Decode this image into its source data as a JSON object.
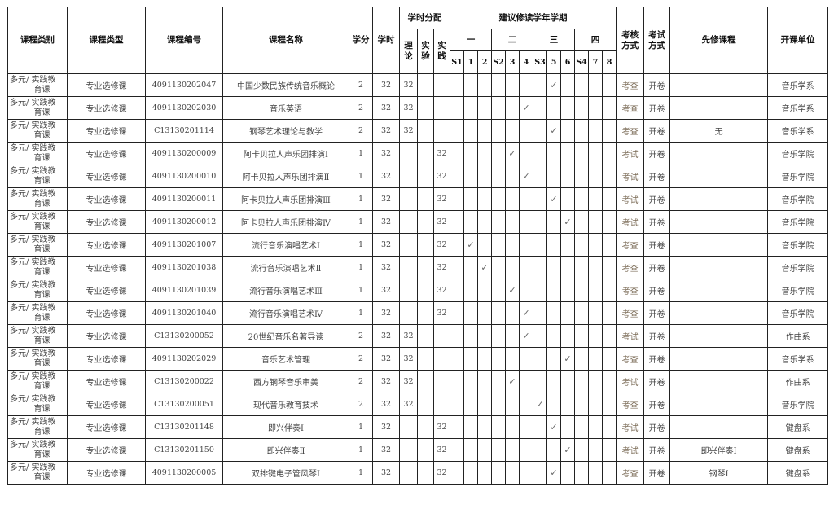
{
  "headers": {
    "category": "课程类别",
    "type": "课程类型",
    "code": "课程编号",
    "name": "课程名称",
    "credits": "学分",
    "hours": "学时",
    "hours_split": "学时分配",
    "theory": "理论",
    "lab": "实验",
    "practice": "实践",
    "semesters_title": "建议修读学年学期",
    "years": [
      "一",
      "二",
      "三",
      "四"
    ],
    "semesters": [
      "S1",
      "1",
      "2",
      "S2",
      "3",
      "4",
      "S3",
      "5",
      "6",
      "S4",
      "7",
      "8"
    ],
    "assessment": "考核方式",
    "exam": "考试方式",
    "prereq": "先修课程",
    "unit": "开课单位"
  },
  "check_mark": "✓",
  "rows": [
    {
      "category": "多元/ 实践教育课",
      "type": "专业选修课",
      "code": "4091130202047",
      "name": "中国少数民族传统音乐概论",
      "credits": "2",
      "hours": "32",
      "theory": "32",
      "lab": "",
      "practice": "",
      "semester": "5",
      "assessment": "考查",
      "exam": "开卷",
      "prereq": "",
      "unit": "音乐学系"
    },
    {
      "category": "多元/ 实践教育课",
      "type": "专业选修课",
      "code": "4091130202030",
      "name": "音乐英语",
      "credits": "2",
      "hours": "32",
      "theory": "32",
      "lab": "",
      "practice": "",
      "semester": "4",
      "assessment": "考查",
      "exam": "开卷",
      "prereq": "",
      "unit": "音乐学系"
    },
    {
      "category": "多元/ 实践教育课",
      "type": "专业选修课",
      "code": "C13130201114",
      "name": "钢琴艺术理论与教学",
      "credits": "2",
      "hours": "32",
      "theory": "32",
      "lab": "",
      "practice": "",
      "semester": "5",
      "assessment": "考查",
      "exam": "开卷",
      "prereq": "无",
      "unit": "音乐学系"
    },
    {
      "category": "多元/ 实践教育课",
      "type": "专业选修课",
      "code": "4091130200009",
      "name": "阿卡贝拉人声乐团排演Ⅰ",
      "credits": "1",
      "hours": "32",
      "theory": "",
      "lab": "",
      "practice": "32",
      "semester": "3",
      "assessment": "考试",
      "exam": "开卷",
      "prereq": "",
      "unit": "音乐学院"
    },
    {
      "category": "多元/ 实践教育课",
      "type": "专业选修课",
      "code": "4091130200010",
      "name": "阿卡贝拉人声乐团排演Ⅱ",
      "credits": "1",
      "hours": "32",
      "theory": "",
      "lab": "",
      "practice": "32",
      "semester": "4",
      "assessment": "考试",
      "exam": "开卷",
      "prereq": "",
      "unit": "音乐学院"
    },
    {
      "category": "多元/ 实践教育课",
      "type": "专业选修课",
      "code": "4091130200011",
      "name": "阿卡贝拉人声乐团排演Ⅲ",
      "credits": "1",
      "hours": "32",
      "theory": "",
      "lab": "",
      "practice": "32",
      "semester": "5",
      "assessment": "考试",
      "exam": "开卷",
      "prereq": "",
      "unit": "音乐学院"
    },
    {
      "category": "多元/ 实践教育课",
      "type": "专业选修课",
      "code": "4091130200012",
      "name": "阿卡贝拉人声乐团排演Ⅳ",
      "credits": "1",
      "hours": "32",
      "theory": "",
      "lab": "",
      "practice": "32",
      "semester": "6",
      "assessment": "考试",
      "exam": "开卷",
      "prereq": "",
      "unit": "音乐学院"
    },
    {
      "category": "多元/ 实践教育课",
      "type": "专业选修课",
      "code": "4091130201007",
      "name": "流行音乐演唱艺术Ⅰ",
      "credits": "1",
      "hours": "32",
      "theory": "",
      "lab": "",
      "practice": "32",
      "semester": "1",
      "assessment": "考查",
      "exam": "开卷",
      "prereq": "",
      "unit": "音乐学院"
    },
    {
      "category": "多元/ 实践教育课",
      "type": "专业选修课",
      "code": "4091130201038",
      "name": "流行音乐演唱艺术Ⅱ",
      "credits": "1",
      "hours": "32",
      "theory": "",
      "lab": "",
      "practice": "32",
      "semester": "2",
      "assessment": "考查",
      "exam": "开卷",
      "prereq": "",
      "unit": "音乐学院"
    },
    {
      "category": "多元/ 实践教育课",
      "type": "专业选修课",
      "code": "4091130201039",
      "name": "流行音乐演唱艺术Ⅲ",
      "credits": "1",
      "hours": "32",
      "theory": "",
      "lab": "",
      "practice": "32",
      "semester": "3",
      "assessment": "考查",
      "exam": "开卷",
      "prereq": "",
      "unit": "音乐学院"
    },
    {
      "category": "多元/ 实践教育课",
      "type": "专业选修课",
      "code": "4091130201040",
      "name": "流行音乐演唱艺术Ⅳ",
      "credits": "1",
      "hours": "32",
      "theory": "",
      "lab": "",
      "practice": "32",
      "semester": "4",
      "assessment": "考查",
      "exam": "开卷",
      "prereq": "",
      "unit": "音乐学院"
    },
    {
      "category": "多元/ 实践教育课",
      "type": "专业选修课",
      "code": "C13130200052",
      "name": "20世纪音乐名著导读",
      "credits": "2",
      "hours": "32",
      "theory": "32",
      "lab": "",
      "practice": "",
      "semester": "4",
      "assessment": "考试",
      "exam": "开卷",
      "prereq": "",
      "unit": "作曲系"
    },
    {
      "category": "多元/ 实践教育课",
      "type": "专业选修课",
      "code": "4091130202029",
      "name": "音乐艺术管理",
      "credits": "2",
      "hours": "32",
      "theory": "32",
      "lab": "",
      "practice": "",
      "semester": "6",
      "assessment": "考查",
      "exam": "开卷",
      "prereq": "",
      "unit": "音乐学系"
    },
    {
      "category": "多元/ 实践教育课",
      "type": "专业选修课",
      "code": "C13130200022",
      "name": "西方钢琴音乐审美",
      "credits": "2",
      "hours": "32",
      "theory": "32",
      "lab": "",
      "practice": "",
      "semester": "3",
      "assessment": "考试",
      "exam": "开卷",
      "prereq": "",
      "unit": "作曲系"
    },
    {
      "category": "多元/ 实践教育课",
      "type": "专业选修课",
      "code": "C13130200051",
      "name": "现代音乐教育技术",
      "credits": "2",
      "hours": "32",
      "theory": "32",
      "lab": "",
      "practice": "",
      "semester": "S3",
      "assessment": "考查",
      "exam": "开卷",
      "prereq": "",
      "unit": "音乐学院"
    },
    {
      "category": "多元/ 实践教育课",
      "type": "专业选修课",
      "code": "C13130201148",
      "name": "即兴伴奏Ⅰ",
      "credits": "1",
      "hours": "32",
      "theory": "",
      "lab": "",
      "practice": "32",
      "semester": "5",
      "assessment": "考试",
      "exam": "开卷",
      "prereq": "",
      "unit": "键盘系"
    },
    {
      "category": "多元/ 实践教育课",
      "type": "专业选修课",
      "code": "C13130201150",
      "name": "即兴伴奏Ⅱ",
      "credits": "1",
      "hours": "32",
      "theory": "",
      "lab": "",
      "practice": "32",
      "semester": "6",
      "assessment": "考试",
      "exam": "开卷",
      "prereq": "即兴伴奏Ⅰ",
      "unit": "键盘系"
    },
    {
      "category": "多元/ 实践教育课",
      "type": "专业选修课",
      "code": "4091130200005",
      "name": "双排键电子管风琴Ⅰ",
      "credits": "1",
      "hours": "32",
      "theory": "",
      "lab": "",
      "practice": "32",
      "semester": "5",
      "assessment": "考查",
      "exam": "开卷",
      "prereq": "钢琴Ⅰ",
      "unit": "键盘系"
    }
  ]
}
